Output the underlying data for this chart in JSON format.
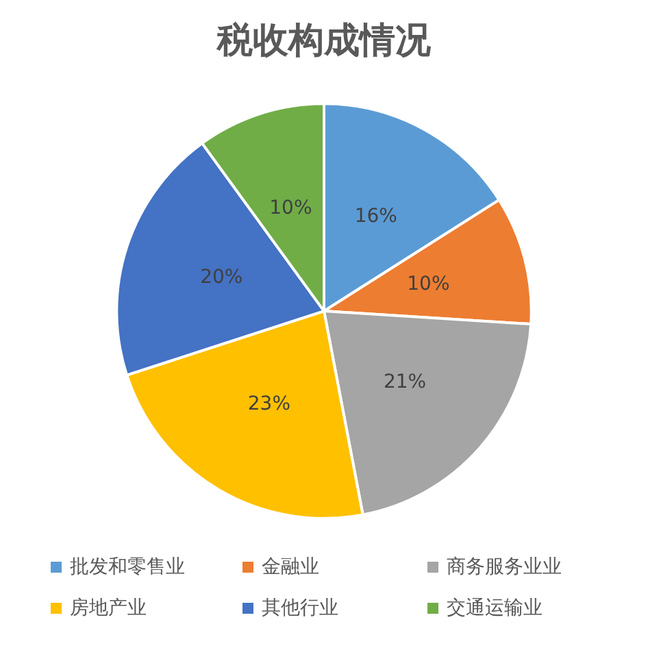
{
  "chart_data": {
    "type": "pie",
    "title": "税收构成情况",
    "categories": [
      "批发和零售业",
      "金融业",
      "商务服务业业",
      "房地产业",
      "其他行业",
      "交通运输业"
    ],
    "values": [
      16,
      10,
      21,
      23,
      20,
      10
    ],
    "colors": [
      "#5b9bd5",
      "#ed7d31",
      "#a5a5a5",
      "#ffc000",
      "#4472c4",
      "#70ad47"
    ],
    "value_labels": [
      "16%",
      "10%",
      "21%",
      "23%",
      "20%",
      "10%"
    ],
    "legend": "bottom"
  }
}
